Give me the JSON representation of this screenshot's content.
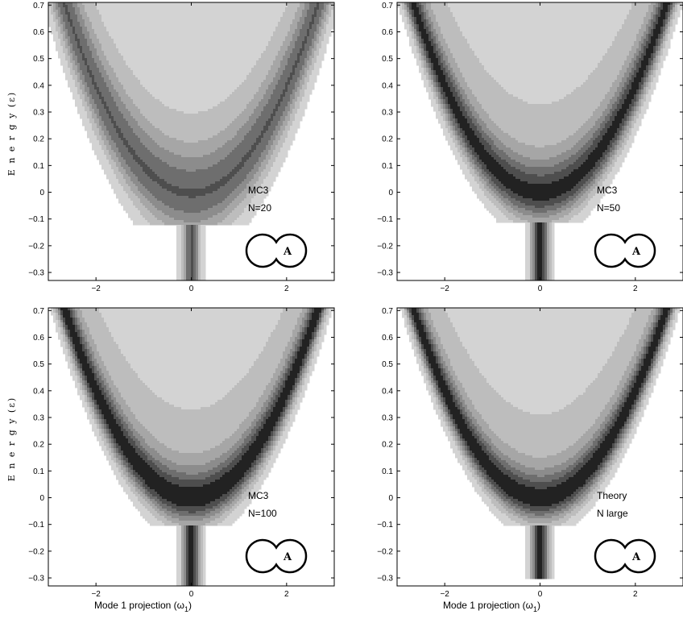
{
  "chart_data": [
    {
      "type": "heatmap",
      "annotation": [
        "MC3",
        "N=20"
      ],
      "inset_label": "A",
      "ylabel": "E n e r g y  (ε)",
      "xlabel": "",
      "xlim": [
        -3,
        3
      ],
      "ylim": [
        -0.33,
        0.71
      ],
      "xticks": [
        -2,
        0,
        2
      ],
      "yticks": [
        -0.3,
        -0.2,
        -0.1,
        0,
        0.1,
        0.2,
        0.3,
        0.4,
        0.5,
        0.6,
        0.7
      ],
      "distribution": {
        "band_center": "0.1*w^2",
        "peak_intensity": 0.75,
        "band_width": 0.16,
        "halo_width": 0.42,
        "bottom_onset": -0.12
      }
    },
    {
      "type": "heatmap",
      "annotation": [
        "MC3",
        "N=50"
      ],
      "inset_label": "A",
      "ylabel": "",
      "xlabel": "",
      "xlim": [
        -3,
        3
      ],
      "ylim": [
        -0.33,
        0.71
      ],
      "xticks": [
        -2,
        0,
        2
      ],
      "yticks": [
        -0.3,
        -0.2,
        -0.1,
        0,
        0.1,
        0.2,
        0.3,
        0.4,
        0.5,
        0.6,
        0.7
      ],
      "distribution": {
        "band_center": "0.1*w^2",
        "peak_intensity": 0.95,
        "band_width": 0.11,
        "halo_width": 0.38,
        "bottom_onset": -0.11
      }
    },
    {
      "type": "heatmap",
      "annotation": [
        "MC3",
        "N=100"
      ],
      "inset_label": "A",
      "ylabel": "E n e r g y  (ε)",
      "xlabel": "Mode 1 projection (ω",
      "xlabel_sub": "1",
      "xlabel_end": ")",
      "xlim": [
        -3,
        3
      ],
      "ylim": [
        -0.33,
        0.71
      ],
      "xticks": [
        -2,
        0,
        2
      ],
      "yticks": [
        -0.3,
        -0.2,
        -0.1,
        0,
        0.1,
        0.2,
        0.3,
        0.4,
        0.5,
        0.6,
        0.7
      ],
      "distribution": {
        "band_center": "0.1*w^2",
        "peak_intensity": 1.0,
        "band_width": 0.1,
        "halo_width": 0.36,
        "bottom_onset": -0.1
      }
    },
    {
      "type": "heatmap",
      "annotation": [
        "Theory",
        "N large"
      ],
      "inset_label": "A",
      "ylabel": "",
      "xlabel": "Mode 1 projection (ω",
      "xlabel_sub": "1",
      "xlabel_end": ")",
      "xlim": [
        -3,
        3
      ],
      "ylim": [
        -0.33,
        0.71
      ],
      "xticks": [
        -2,
        0,
        2
      ],
      "yticks": [
        -0.3,
        -0.2,
        -0.1,
        0,
        0.1,
        0.2,
        0.3,
        0.4,
        0.5,
        0.6,
        0.7
      ],
      "distribution": {
        "band_center": "0.1*w^2",
        "peak_intensity": 1.0,
        "band_width": 0.09,
        "halo_width": 0.34,
        "bottom_onset": -0.1,
        "bottom_cutoff": -0.3
      }
    }
  ]
}
